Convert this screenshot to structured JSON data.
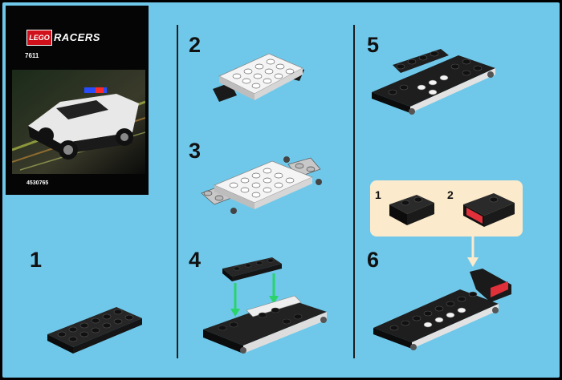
{
  "cover": {
    "brand": "LEGO",
    "series": "RACERS",
    "set_number": "7611",
    "code": "4530765"
  },
  "steps": [
    {
      "number": "1"
    },
    {
      "number": "2"
    },
    {
      "number": "3"
    },
    {
      "number": "4"
    },
    {
      "number": "5"
    },
    {
      "number": "6"
    }
  ],
  "callout": {
    "substeps": [
      "1",
      "2"
    ]
  },
  "colors": {
    "background": "#6fc8ea",
    "callout": "#fbeacb",
    "arrow_green": "#2bd46a",
    "arrow_light": "#fbeacb",
    "brick_black": "#1a1a1a",
    "brick_white": "#f2f2f2",
    "accent_red": "#d0101a"
  }
}
